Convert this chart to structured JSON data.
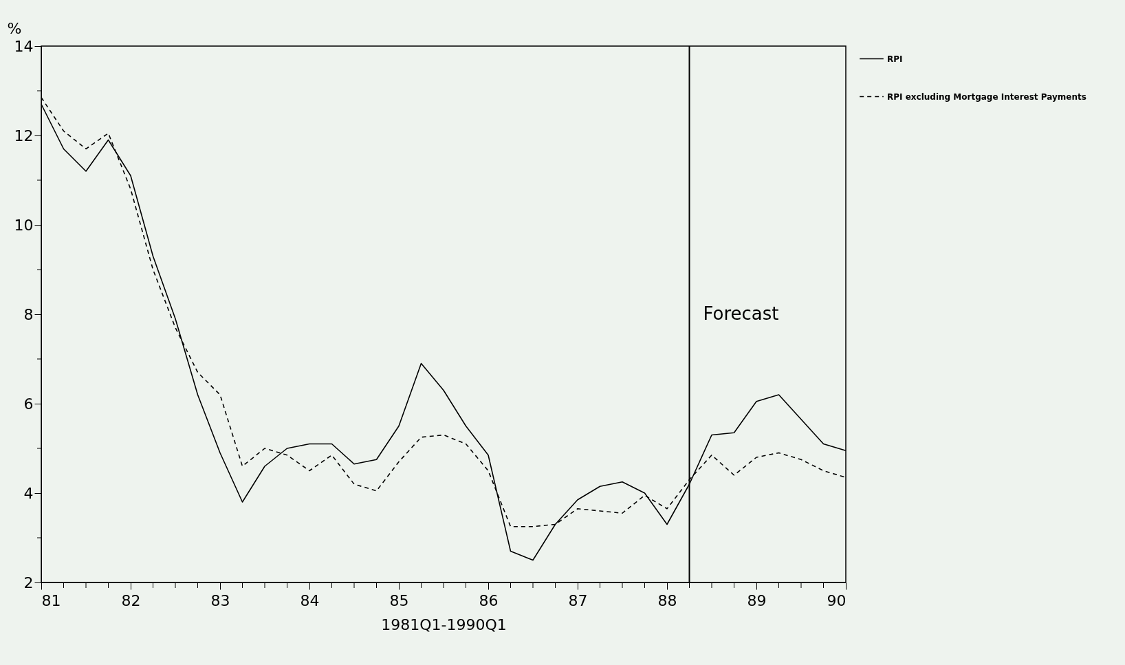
{
  "chart_data": {
    "type": "line",
    "xlabel": "1981Q1-1990Q1",
    "ylabel": "%",
    "x": [
      81,
      81.25,
      81.5,
      81.75,
      82,
      82.25,
      82.5,
      82.75,
      83,
      83.25,
      83.5,
      83.75,
      84,
      84.25,
      84.5,
      84.75,
      85,
      85.25,
      85.5,
      85.75,
      86,
      86.25,
      86.5,
      86.75,
      87,
      87.25,
      87.5,
      87.75,
      88,
      88.25,
      88.5,
      88.75,
      89,
      89.25,
      89.5,
      89.75,
      90
    ],
    "series": [
      {
        "name": "RPI",
        "color": "#000000",
        "line_style": "solid",
        "values": [
          12.7,
          11.7,
          11.2,
          11.9,
          11.1,
          9.3,
          7.9,
          6.2,
          4.9,
          3.8,
          4.6,
          5.0,
          5.1,
          5.1,
          4.65,
          4.75,
          5.5,
          6.9,
          6.3,
          5.5,
          4.85,
          2.7,
          2.5,
          3.3,
          3.85,
          4.15,
          4.25,
          4.0,
          3.3,
          4.2,
          5.3,
          5.35,
          6.05,
          6.2,
          5.65,
          5.1,
          4.95
        ]
      },
      {
        "name": "RPI excluding Mortgage Interest Payments",
        "color": "#000000",
        "line_style": "dashed",
        "values": [
          12.85,
          12.1,
          11.7,
          12.05,
          10.8,
          9.0,
          7.7,
          6.7,
          6.2,
          4.6,
          5.0,
          4.85,
          4.5,
          4.85,
          4.2,
          4.05,
          4.7,
          5.25,
          5.3,
          5.1,
          4.5,
          3.25,
          3.25,
          3.3,
          3.65,
          3.6,
          3.55,
          3.95,
          3.65,
          4.3,
          4.85,
          4.4,
          4.8,
          4.9,
          4.75,
          4.5,
          4.35
        ]
      }
    ],
    "xlim": [
      81,
      90
    ],
    "xticks": [
      81,
      {
        "value": 81.25,
        "label": null
      },
      {
        "value": 81.5,
        "label": null
      },
      {
        "value": 81.75,
        "label": null
      },
      82,
      {
        "value": 82.25,
        "label": null
      },
      {
        "value": 82.5,
        "label": null
      },
      {
        "value": 82.75,
        "label": null
      },
      83,
      {
        "value": 83.25,
        "label": null
      },
      {
        "value": 83.5,
        "label": null
      },
      {
        "value": 83.75,
        "label": null
      },
      84,
      {
        "value": 84.25,
        "label": null
      },
      {
        "value": 84.5,
        "label": null
      },
      {
        "value": 84.75,
        "label": null
      },
      85,
      {
        "value": 85.25,
        "label": null
      },
      {
        "value": 85.5,
        "label": null
      },
      {
        "value": 85.75,
        "label": null
      },
      86,
      {
        "value": 86.25,
        "label": null
      },
      {
        "value": 86.5,
        "label": null
      },
      {
        "value": 86.75,
        "label": null
      },
      87,
      {
        "value": 87.25,
        "label": null
      },
      {
        "value": 87.5,
        "label": null
      },
      {
        "value": 87.75,
        "label": null
      },
      88,
      {
        "value": 88.25,
        "label": null
      },
      {
        "value": 88.5,
        "label": null
      },
      {
        "value": 88.75,
        "label": null
      },
      89,
      {
        "value": 89.25,
        "label": null
      },
      {
        "value": 89.5,
        "label": null
      },
      {
        "value": 89.75,
        "label": null
      },
      90
    ],
    "ylim": [
      2,
      14
    ],
    "yticks": [
      2,
      {
        "value": 3,
        "label": null
      },
      4,
      {
        "value": 5,
        "label": null
      },
      6,
      {
        "value": 7,
        "label": null
      },
      8,
      {
        "value": 9,
        "label": null
      },
      10,
      {
        "value": 11,
        "label": null
      },
      12,
      {
        "value": 13,
        "label": null
      },
      14
    ],
    "ref_lines": [
      {
        "axis": "x",
        "value": 88.25,
        "label": "Forecast",
        "color": "#000000",
        "line_style": "solid"
      }
    ],
    "grid": false,
    "legend": "top right",
    "marker": "none"
  }
}
